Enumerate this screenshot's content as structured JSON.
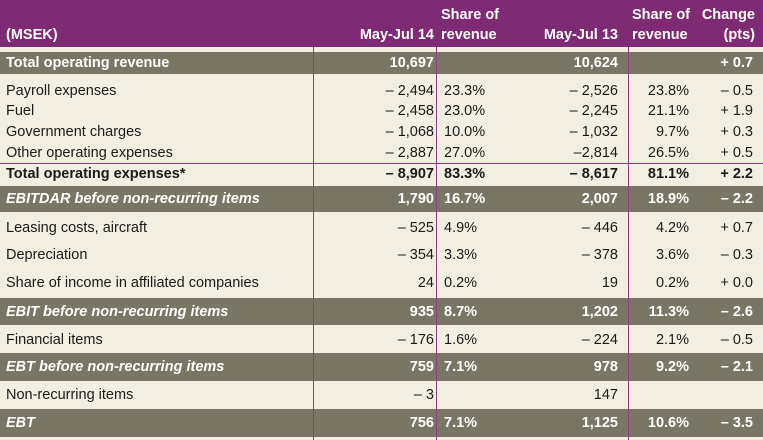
{
  "header": {
    "unit": "(MSEK)",
    "col_may_jul_14": "May-Jul 14",
    "col_share_14_line1": "Share of",
    "col_share_14_line2": "revenue",
    "col_may_jul_13": "May-Jul 13",
    "col_share_13_line1": "Share of",
    "col_share_13_line2": "revenue",
    "col_change_line1": "Change",
    "col_change_line2": "(pts)"
  },
  "rows": [
    {
      "label": "Total operating revenue",
      "may_jul_14": "10,697",
      "share_14": "",
      "may_jul_13": "10,624",
      "share_13": "",
      "change": "+ 0.7"
    },
    {
      "label": "Payroll expenses",
      "may_jul_14": "– 2,494",
      "share_14": "23.3%",
      "may_jul_13": "– 2,526",
      "share_13": "23.8%",
      "change": "– 0.5"
    },
    {
      "label": "Fuel",
      "may_jul_14": "– 2,458",
      "share_14": "23.0%",
      "may_jul_13": "– 2,245",
      "share_13": "21.1%",
      "change": "+ 1.9"
    },
    {
      "label": "Government charges",
      "may_jul_14": "– 1,068",
      "share_14": "10.0%",
      "may_jul_13": "– 1,032",
      "share_13": "9.7%",
      "change": "+ 0.3"
    },
    {
      "label": "Other operating expenses",
      "may_jul_14": "– 2,887",
      "share_14": "27.0%",
      "may_jul_13": "–2,814",
      "share_13": "26.5%",
      "change": "+ 0.5"
    },
    {
      "label": "Total operating expenses*",
      "may_jul_14": "– 8,907",
      "share_14": "83.3%",
      "may_jul_13": "– 8,617",
      "share_13": "81.1%",
      "change": "+ 2.2"
    },
    {
      "label": "EBITDAR before non-recurring items",
      "may_jul_14": "1,790",
      "share_14": "16.7%",
      "may_jul_13": "2,007",
      "share_13": "18.9%",
      "change": "– 2.2"
    },
    {
      "label": "Leasing costs, aircraft",
      "may_jul_14": "– 525",
      "share_14": "4.9%",
      "may_jul_13": "– 446",
      "share_13": "4.2%",
      "change": "+ 0.7"
    },
    {
      "label": "Depreciation",
      "may_jul_14": "– 354",
      "share_14": "3.3%",
      "may_jul_13": "– 378",
      "share_13": "3.6%",
      "change": "– 0.3"
    },
    {
      "label": "Share of income in affiliated companies",
      "may_jul_14": "24",
      "share_14": "0.2%",
      "may_jul_13": "19",
      "share_13": "0.2%",
      "change": "+ 0.0"
    },
    {
      "label": "EBIT before non-recurring items",
      "may_jul_14": "935",
      "share_14": "8.7%",
      "may_jul_13": "1,202",
      "share_13": "11.3%",
      "change": "– 2.6"
    },
    {
      "label": "Financial items",
      "may_jul_14": "– 176",
      "share_14": "1.6%",
      "may_jul_13": "– 224",
      "share_13": "2.1%",
      "change": "– 0.5"
    },
    {
      "label": "EBT before non-recurring items",
      "may_jul_14": "759",
      "share_14": "7.1%",
      "may_jul_13": "978",
      "share_13": "9.2%",
      "change": "– 2.1"
    },
    {
      "label": "Non-recurring items",
      "may_jul_14": "– 3",
      "share_14": "",
      "may_jul_13": "147",
      "share_13": "",
      "change": ""
    },
    {
      "label": "EBT",
      "may_jul_14": "756",
      "share_14": "7.1%",
      "may_jul_13": "1,125",
      "share_13": "10.6%",
      "change": "– 3.5"
    }
  ],
  "colors": {
    "header_bg": "#7f2a74",
    "band_bg": "#7a7666",
    "body_bg": "#f2efe2",
    "rule": "#8e3d82"
  }
}
